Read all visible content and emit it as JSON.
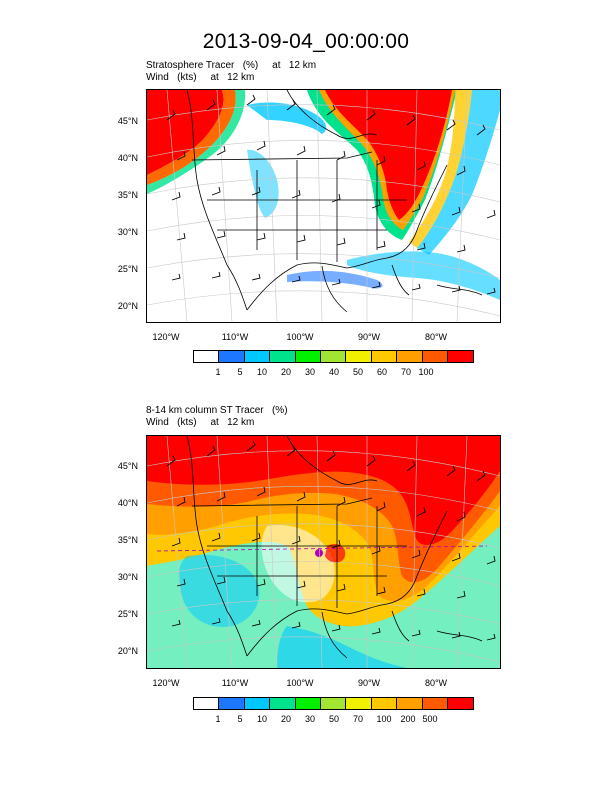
{
  "title": "2013-09-04_00:00:00",
  "panels": [
    {
      "subtitle_1": "Stratosphere Tracer   (%)     at   12 km",
      "subtitle_2": "Wind   (kts)     at   12 km",
      "lat_labels": [
        "45°N",
        "40°N",
        "35°N",
        "30°N",
        "25°N",
        "20°N"
      ],
      "lon_labels": [
        "120°W",
        "110°W",
        "100°W",
        "90°W",
        "80°W"
      ],
      "colorbar_labels": [
        "1",
        "5",
        "10",
        "20",
        "30",
        "40",
        "50",
        "60",
        "70",
        "100"
      ]
    },
    {
      "subtitle_1": "8-14 km column ST Tracer   (%)",
      "subtitle_2": "Wind   (kts)     at   12 km",
      "lat_labels": [
        "45°N",
        "40°N",
        "35°N",
        "30°N",
        "25°N",
        "20°N"
      ],
      "lon_labels": [
        "120°W",
        "110°W",
        "100°W",
        "90°W",
        "80°W"
      ],
      "colorbar_labels": [
        "1",
        "5",
        "10",
        "20",
        "30",
        "50",
        "70",
        "100",
        "200",
        "500"
      ]
    }
  ],
  "colorbar_colors": [
    "#ffffff",
    "#1e78ff",
    "#00c8ff",
    "#00e28c",
    "#00f000",
    "#a0e632",
    "#f0f000",
    "#ffc800",
    "#ffa000",
    "#ff5a00",
    "#ff0000"
  ]
}
